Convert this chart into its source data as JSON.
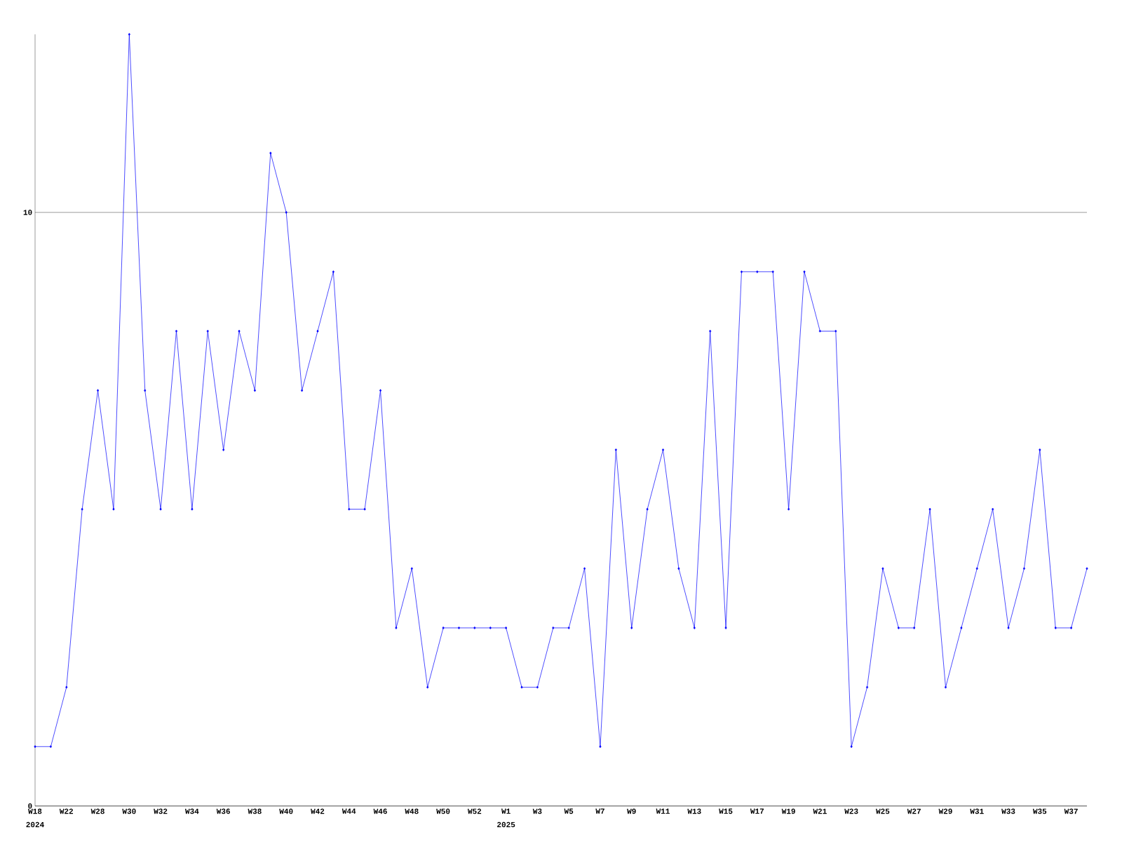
{
  "chart_data": {
    "type": "line",
    "categories": [
      "W18",
      null,
      "W22",
      null,
      "W28",
      null,
      "W30",
      null,
      "W32",
      null,
      "W34",
      null,
      "W36",
      null,
      "W38",
      null,
      "W40",
      null,
      "W42",
      null,
      "W44",
      null,
      "W46",
      null,
      "W48",
      null,
      "W50",
      null,
      "W52",
      null,
      "W1",
      null,
      "W3",
      null,
      "W5",
      null,
      "W7",
      null,
      "W9",
      null,
      "W11",
      null,
      "W13",
      null,
      "W15",
      null,
      "W17",
      null,
      "W19",
      null,
      "W21",
      null,
      "W23",
      null,
      "W25",
      null,
      "W27",
      null,
      "W29",
      null,
      "W31",
      null,
      "W33",
      null,
      "W35",
      null,
      "W37",
      null
    ],
    "series": [
      {
        "color": "#0000ff",
        "values": [
          1,
          1,
          2,
          5,
          7,
          5,
          13,
          7,
          5,
          8,
          5,
          8,
          6,
          8,
          7,
          11,
          10,
          7,
          8,
          9,
          5,
          5,
          7,
          3,
          4,
          2,
          3,
          3,
          3,
          3,
          3,
          2,
          2,
          3,
          3,
          4,
          1,
          6,
          3,
          5,
          6,
          4,
          3,
          8,
          3,
          9,
          9,
          9,
          5,
          9,
          8,
          8,
          1,
          2,
          4,
          3,
          3,
          5,
          2,
          3,
          4,
          5,
          3,
          4,
          6,
          3,
          3,
          4
        ]
      }
    ],
    "ylim": [
      0,
      13
    ],
    "yticks": [
      0,
      10
    ],
    "grid": "y",
    "marker": "diamond",
    "line_style": "solid",
    "annotations": [
      "2024",
      "2025"
    ]
  }
}
